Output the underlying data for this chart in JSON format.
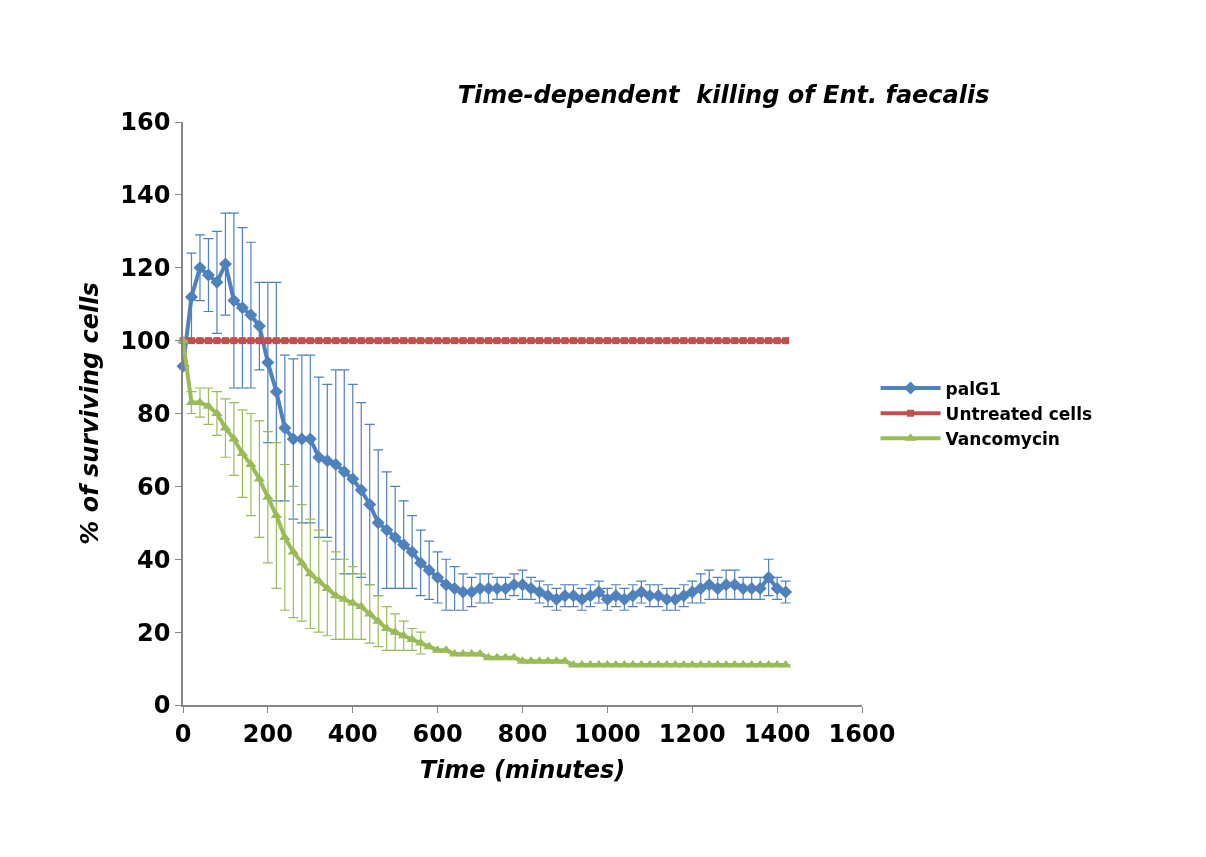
{
  "chart_data": {
    "type": "line",
    "title": "Time-dependent  killing of Ent. faecalis",
    "xlabel": "Time (minutes)",
    "ylabel": "% of surviving cells",
    "x": [
      0,
      20,
      40,
      60,
      80,
      100,
      120,
      140,
      160,
      180,
      200,
      220,
      240,
      260,
      280,
      300,
      320,
      340,
      360,
      380,
      400,
      420,
      440,
      460,
      480,
      500,
      520,
      540,
      560,
      580,
      600,
      620,
      640,
      660,
      680,
      700,
      720,
      740,
      760,
      780,
      800,
      820,
      840,
      860,
      880,
      900,
      920,
      940,
      960,
      980,
      1000,
      1020,
      1040,
      1060,
      1080,
      1100,
      1120,
      1140,
      1160,
      1180,
      1200,
      1220,
      1240,
      1260,
      1280,
      1300,
      1320,
      1340,
      1360,
      1380,
      1400,
      1420
    ],
    "series": [
      {
        "name": "palG1",
        "color": "#4f81bd",
        "marker": "diamond",
        "values": [
          93,
          112,
          120,
          118,
          116,
          121,
          111,
          109,
          107,
          104,
          94,
          86,
          76,
          73,
          73,
          73,
          68,
          67,
          66,
          64,
          62,
          59,
          55,
          50,
          48,
          46,
          44,
          42,
          39,
          37,
          35,
          33,
          32,
          31,
          31,
          32,
          32,
          32,
          32,
          33,
          33,
          32,
          31,
          30,
          29,
          30,
          30,
          29,
          30,
          31,
          29,
          30,
          29,
          30,
          31,
          30,
          30,
          29,
          29,
          30,
          31,
          32,
          33,
          32,
          33,
          33,
          32,
          32,
          32,
          35,
          32,
          31
        ],
        "errors": [
          null,
          12,
          9,
          10,
          14,
          14,
          24,
          22,
          20,
          12,
          22,
          30,
          20,
          22,
          23,
          23,
          22,
          21,
          26,
          28,
          26,
          24,
          22,
          20,
          16,
          14,
          12,
          10,
          9,
          8,
          7,
          7,
          6,
          5,
          4,
          4,
          4,
          3,
          3,
          3,
          4,
          3,
          3,
          3,
          3,
          3,
          3,
          3,
          3,
          3,
          3,
          3,
          3,
          3,
          3,
          3,
          3,
          3,
          3,
          3,
          3,
          4,
          4,
          3,
          4,
          4,
          3,
          3,
          3,
          5,
          3,
          3
        ]
      },
      {
        "name": "Untreated cells",
        "color": "#c0504d",
        "marker": "square",
        "values": [
          100,
          100,
          100,
          100,
          100,
          100,
          100,
          100,
          100,
          100,
          100,
          100,
          100,
          100,
          100,
          100,
          100,
          100,
          100,
          100,
          100,
          100,
          100,
          100,
          100,
          100,
          100,
          100,
          100,
          100,
          100,
          100,
          100,
          100,
          100,
          100,
          100,
          100,
          100,
          100,
          100,
          100,
          100,
          100,
          100,
          100,
          100,
          100,
          100,
          100,
          100,
          100,
          100,
          100,
          100,
          100,
          100,
          100,
          100,
          100,
          100,
          100,
          100,
          100,
          100,
          100,
          100,
          100,
          100,
          100,
          100,
          100
        ]
      },
      {
        "name": "Vancomycin",
        "color": "#9bbb59",
        "marker": "triangle",
        "values": [
          100,
          83,
          83,
          82,
          80,
          76,
          73,
          69,
          66,
          62,
          57,
          52,
          46,
          42,
          39,
          36,
          34,
          32,
          30,
          29,
          28,
          27,
          25,
          23,
          21,
          20,
          19,
          18,
          17,
          16,
          15,
          15,
          14,
          14,
          14,
          14,
          13,
          13,
          13,
          13,
          12,
          12,
          12,
          12,
          12,
          12,
          11,
          11,
          11,
          11,
          11,
          11,
          11,
          11,
          11,
          11,
          11,
          11,
          11,
          11,
          11,
          11,
          11,
          11,
          11,
          11,
          11,
          11,
          11,
          11,
          11,
          11
        ],
        "errors": [
          null,
          3,
          4,
          5,
          6,
          8,
          10,
          12,
          14,
          16,
          18,
          20,
          20,
          18,
          16,
          15,
          14,
          13,
          12,
          11,
          10,
          9,
          8,
          7,
          6,
          5,
          4,
          3,
          3,
          null,
          null,
          null,
          null,
          null,
          null,
          null,
          null,
          null,
          null,
          null,
          null,
          null,
          null,
          null,
          null,
          null,
          null,
          null,
          null,
          null,
          null,
          null,
          null,
          null,
          null,
          null,
          null,
          null,
          null,
          null,
          null,
          null,
          null,
          null,
          null,
          null,
          null,
          null,
          null,
          null,
          null,
          null
        ]
      }
    ],
    "xlim": [
      0,
      1600
    ],
    "xticks": [
      0,
      200,
      400,
      600,
      800,
      1000,
      1200,
      1400,
      1600
    ],
    "ylim": [
      0,
      160
    ],
    "yticks": [
      0,
      20,
      40,
      60,
      80,
      100,
      120,
      140,
      160
    ],
    "legend": "right",
    "line_style": "solid"
  }
}
